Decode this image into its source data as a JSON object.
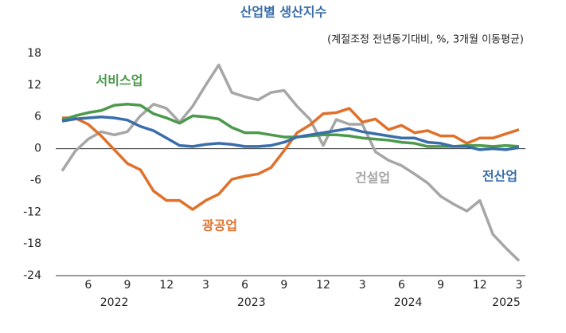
{
  "chart_data": {
    "type": "line",
    "title": "산업별 생산지수",
    "subtitle": "(계절조정 전년동기대비, %, 3개월 이동평균)",
    "categories": [
      null,
      null,
      "6",
      null,
      null,
      "9",
      null,
      null,
      "12",
      null,
      null,
      "3",
      null,
      null,
      "6",
      null,
      null,
      "9",
      null,
      null,
      "12",
      null,
      null,
      "3",
      null,
      null,
      "6",
      null,
      null,
      "9",
      null,
      null,
      "12",
      null,
      null,
      "3"
    ],
    "year_labels": [
      "2022",
      "2023",
      "2024",
      "2025"
    ],
    "series": [
      {
        "name": "건설업",
        "color": "#a6a6a6",
        "values": [
          -4.2,
          -0.5,
          1.8,
          3.2,
          2.6,
          3.2,
          6.2,
          8.4,
          7.6,
          5.0,
          8.0,
          12.0,
          15.8,
          10.6,
          9.8,
          9.2,
          10.6,
          11.0,
          8.0,
          5.5,
          0.6,
          5.5,
          4.6,
          4.6,
          -0.6,
          -2.2,
          -3.2,
          -4.8,
          -6.5,
          -9.0,
          -10.5,
          -11.8,
          -9.8,
          -16.2,
          -18.8,
          -21.2
        ]
      },
      {
        "name": "광공업",
        "color": "#e0702a",
        "values": [
          5.8,
          5.8,
          4.6,
          2.4,
          -0.2,
          -2.8,
          -4.0,
          -8.0,
          -9.8,
          -9.8,
          -11.5,
          -9.8,
          -8.6,
          -5.8,
          -5.2,
          -4.8,
          -3.6,
          -0.4,
          3.0,
          4.5,
          6.6,
          6.8,
          7.6,
          5.0,
          5.6,
          3.6,
          4.4,
          3.0,
          3.4,
          2.4,
          2.4,
          1.0,
          2.0,
          2.0,
          2.8,
          3.6
        ]
      },
      {
        "name": "서비스업",
        "color": "#4c9a4c",
        "values": [
          5.4,
          6.2,
          6.8,
          7.2,
          8.2,
          8.4,
          8.2,
          6.6,
          5.8,
          4.8,
          6.2,
          6.0,
          5.6,
          4.0,
          3.0,
          3.0,
          2.6,
          2.2,
          2.2,
          2.4,
          2.6,
          2.6,
          2.4,
          2.0,
          1.8,
          1.6,
          1.2,
          1.0,
          0.4,
          0.4,
          0.4,
          0.6,
          0.6,
          0.4,
          0.6,
          0.4
        ]
      },
      {
        "name": "전산업",
        "color": "#3a6eaa",
        "values": [
          5.2,
          5.6,
          5.8,
          6.0,
          5.8,
          5.4,
          4.2,
          3.4,
          2.0,
          0.6,
          0.4,
          0.8,
          1.0,
          0.8,
          0.4,
          0.4,
          0.6,
          1.2,
          2.2,
          2.6,
          3.0,
          3.4,
          3.8,
          3.2,
          2.8,
          2.4,
          2.0,
          2.0,
          1.2,
          1.0,
          0.4,
          0.4,
          -0.2,
          0.0,
          -0.2,
          0.2
        ]
      }
    ],
    "ylim": [
      -24,
      18
    ],
    "yticks": [
      -24,
      -18,
      -12,
      -6,
      0,
      6,
      12,
      18
    ]
  }
}
